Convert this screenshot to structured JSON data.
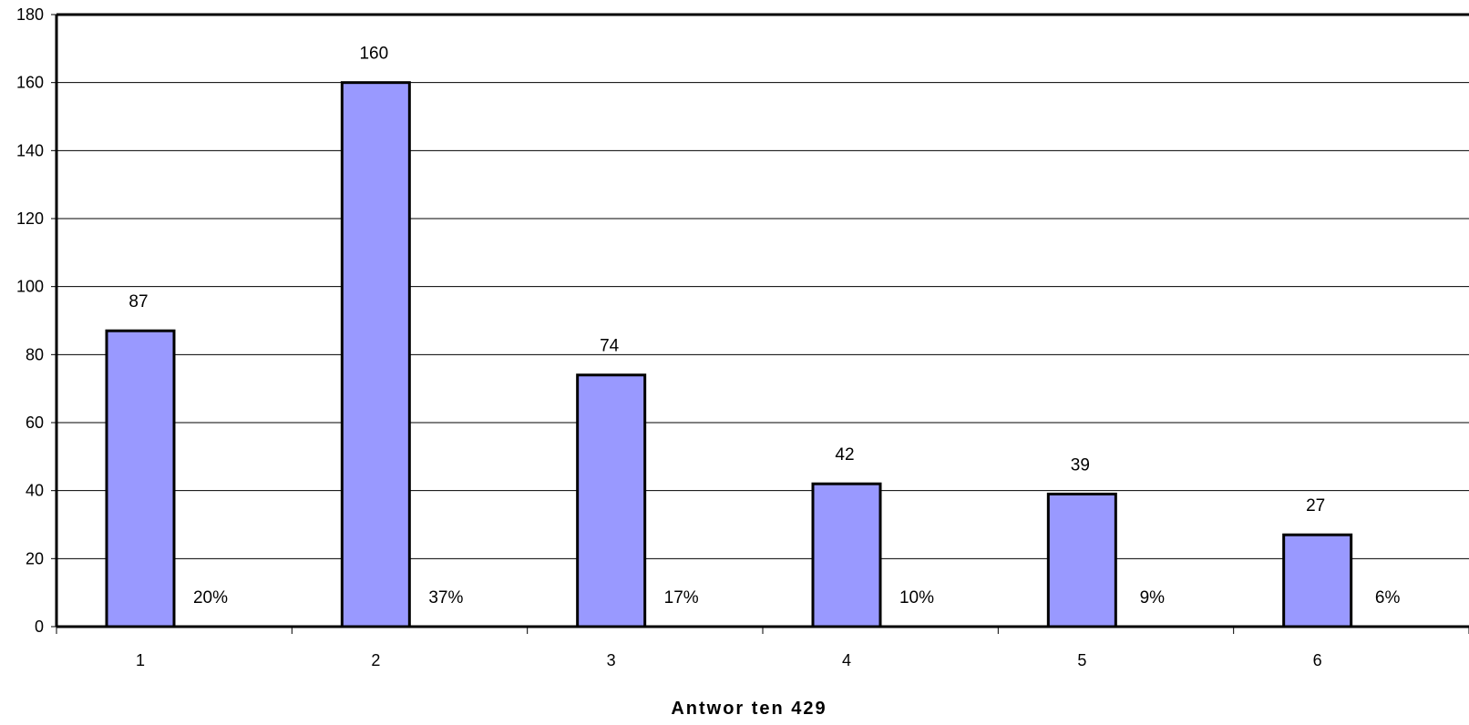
{
  "chart_data": {
    "type": "bar",
    "categories": [
      "1",
      "2",
      "3",
      "4",
      "5",
      "6"
    ],
    "values": [
      87,
      160,
      74,
      42,
      39,
      27
    ],
    "percent_labels": [
      "20%",
      "37%",
      "17%",
      "10%",
      "9%",
      "6%"
    ],
    "title": "",
    "xlabel": "Antwor ten 429",
    "ylabel": "",
    "ylim": [
      0,
      180
    ],
    "yticks": [
      0,
      20,
      40,
      60,
      80,
      100,
      120,
      140,
      160,
      180
    ],
    "grid": true,
    "legend": "none",
    "colors": {
      "bar_fill": "#9999ff",
      "bar_stroke": "#000000",
      "grid": "#000000",
      "axis": "#000000"
    }
  }
}
